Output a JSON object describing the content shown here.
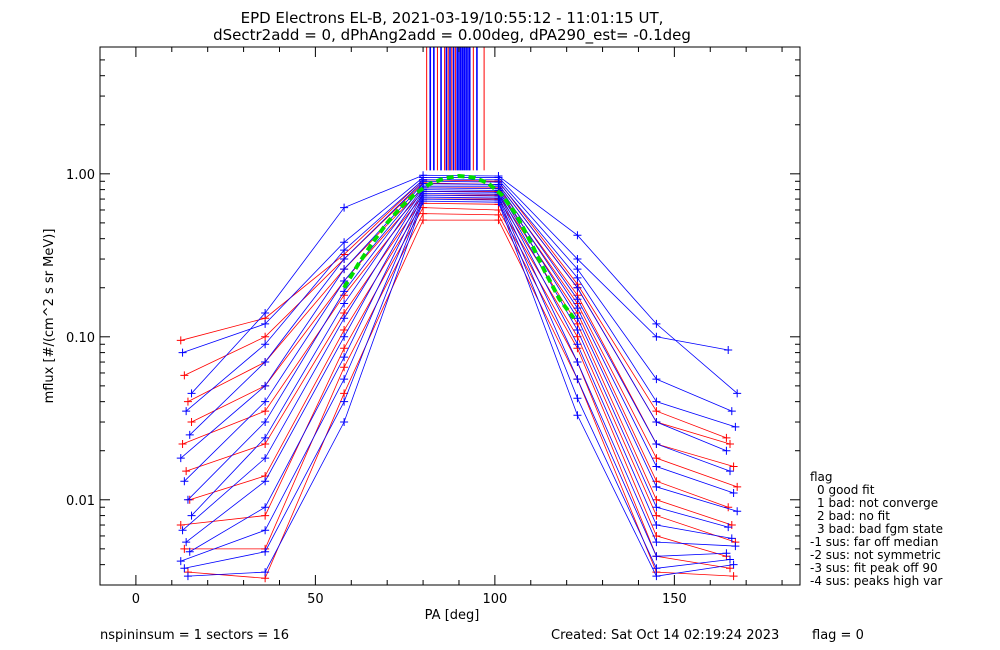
{
  "title_line1": "EPD Electrons EL-B, 2021-03-19/10:55:12 - 11:01:15 UT,",
  "title_line2": "dSectr2add = 0, dPhAng2add = 0.00deg, dPA290_est=  -0.1deg",
  "footer": {
    "left": "nspininsum =  1  sectors = 16",
    "created": "Created: Sat Oct 14 02:19:24 2023",
    "flag": "flag = 0"
  },
  "legend": {
    "title": "flag",
    "items": [
      "0 good fit",
      "1 bad: not converge",
      "2 bad: no fit",
      "3 bad: bad fgm state",
      "-1 sus: far off median",
      "-2 sus: not symmetric",
      "-3 sus: fit peak off 90",
      "-4 sus: peaks high var"
    ]
  },
  "colors": {
    "series_a": "#ff0000",
    "series_b": "#0000ff",
    "fit": "#00dd00",
    "axes": "#000000"
  },
  "chart_data": {
    "type": "line",
    "xlabel": "PA [deg]",
    "ylabel": "mflux [#/(cm^2 s sr MeV)]",
    "xlim": [
      -10,
      185
    ],
    "ylim": [
      0.003,
      6.0
    ],
    "yscale": "log",
    "xticks": [
      0,
      50,
      100,
      150
    ],
    "xtick_labels": [
      "0",
      "50",
      "100",
      "150"
    ],
    "yticks": [
      0.01,
      0.1,
      1.0
    ],
    "ytick_labels": [
      "0.01",
      "0.10",
      "1.00"
    ],
    "grid": false,
    "pitch_angles": [
      14,
      36,
      58,
      80,
      101,
      123,
      145,
      166
    ],
    "series": [
      {
        "color": "red",
        "values": [
          0.095,
          0.13,
          0.32,
          0.92,
          0.9,
          0.21,
          0.035,
          0.024
        ]
      },
      {
        "color": "red",
        "values": [
          0.058,
          0.1,
          0.3,
          0.88,
          0.86,
          0.2,
          0.03,
          0.022
        ]
      },
      {
        "color": "red",
        "values": [
          0.04,
          0.07,
          0.26,
          0.82,
          0.82,
          0.18,
          0.022,
          0.016
        ]
      },
      {
        "color": "red",
        "values": [
          0.03,
          0.05,
          0.22,
          0.78,
          0.78,
          0.16,
          0.018,
          0.012
        ]
      },
      {
        "color": "red",
        "values": [
          0.022,
          0.035,
          0.18,
          0.74,
          0.74,
          0.14,
          0.013,
          0.009
        ]
      },
      {
        "color": "red",
        "values": [
          0.015,
          0.022,
          0.14,
          0.7,
          0.7,
          0.12,
          0.01,
          0.007
        ]
      },
      {
        "color": "red",
        "values": [
          0.01,
          0.014,
          0.11,
          0.66,
          0.65,
          0.1,
          0.008,
          0.0055
        ]
      },
      {
        "color": "red",
        "values": [
          0.007,
          0.008,
          0.085,
          0.62,
          0.6,
          0.085,
          0.006,
          0.0045
        ]
      },
      {
        "color": "red",
        "values": [
          0.005,
          0.005,
          0.065,
          0.57,
          0.56,
          0.07,
          0.0045,
          0.0038
        ]
      },
      {
        "color": "red",
        "values": [
          0.0036,
          0.0033,
          0.045,
          0.52,
          0.52,
          0.055,
          0.0036,
          0.0034
        ]
      },
      {
        "color": "blue",
        "values": [
          0.045,
          0.14,
          0.62,
          0.98,
          0.97,
          0.42,
          0.12,
          0.045
        ]
      },
      {
        "color": "blue",
        "values": [
          0.08,
          0.12,
          0.38,
          0.95,
          0.95,
          0.3,
          0.1,
          0.083
        ]
      },
      {
        "color": "blue",
        "values": [
          0.035,
          0.09,
          0.34,
          0.92,
          0.92,
          0.26,
          0.055,
          0.035
        ]
      },
      {
        "color": "blue",
        "values": [
          0.025,
          0.07,
          0.3,
          0.9,
          0.89,
          0.23,
          0.04,
          0.028
        ]
      },
      {
        "color": "blue",
        "values": [
          0.018,
          0.05,
          0.26,
          0.87,
          0.86,
          0.2,
          0.03,
          0.02
        ]
      },
      {
        "color": "blue",
        "values": [
          0.013,
          0.04,
          0.22,
          0.84,
          0.84,
          0.17,
          0.022,
          0.015
        ]
      },
      {
        "color": "blue",
        "values": [
          0.01,
          0.03,
          0.19,
          0.82,
          0.81,
          0.15,
          0.016,
          0.011
        ]
      },
      {
        "color": "blue",
        "values": [
          0.008,
          0.024,
          0.16,
          0.8,
          0.79,
          0.13,
          0.012,
          0.0085
        ]
      },
      {
        "color": "blue",
        "values": [
          0.0065,
          0.018,
          0.13,
          0.78,
          0.77,
          0.11,
          0.009,
          0.0068
        ]
      },
      {
        "color": "blue",
        "values": [
          0.0055,
          0.013,
          0.1,
          0.76,
          0.75,
          0.09,
          0.007,
          0.0058
        ]
      },
      {
        "color": "blue",
        "values": [
          0.0048,
          0.009,
          0.075,
          0.74,
          0.73,
          0.07,
          0.0055,
          0.0052
        ]
      },
      {
        "color": "blue",
        "values": [
          0.0042,
          0.0065,
          0.055,
          0.72,
          0.71,
          0.055,
          0.0045,
          0.0047
        ]
      },
      {
        "color": "blue",
        "values": [
          0.0038,
          0.0048,
          0.04,
          0.7,
          0.69,
          0.042,
          0.0038,
          0.0043
        ]
      },
      {
        "color": "blue",
        "values": [
          0.0034,
          0.0036,
          0.03,
          0.68,
          0.67,
          0.033,
          0.0034,
          0.004
        ]
      }
    ],
    "fit_curve": {
      "color": "green",
      "style": "dashed",
      "x": [
        58,
        62,
        66,
        70,
        74,
        78,
        82,
        86,
        90,
        94,
        98,
        102,
        106,
        110,
        114,
        118,
        122
      ],
      "y": [
        0.2,
        0.28,
        0.38,
        0.5,
        0.63,
        0.76,
        0.87,
        0.94,
        0.97,
        0.95,
        0.88,
        0.74,
        0.56,
        0.38,
        0.25,
        0.17,
        0.13
      ]
    },
    "spikes": {
      "x_red": [
        81,
        84,
        86,
        87,
        88,
        89,
        94,
        97
      ],
      "x_blue": [
        82,
        83,
        85,
        86.5,
        87.5,
        88.5,
        89.5,
        90,
        90.5,
        91,
        91.5,
        92,
        92.5,
        93,
        95
      ]
    }
  }
}
